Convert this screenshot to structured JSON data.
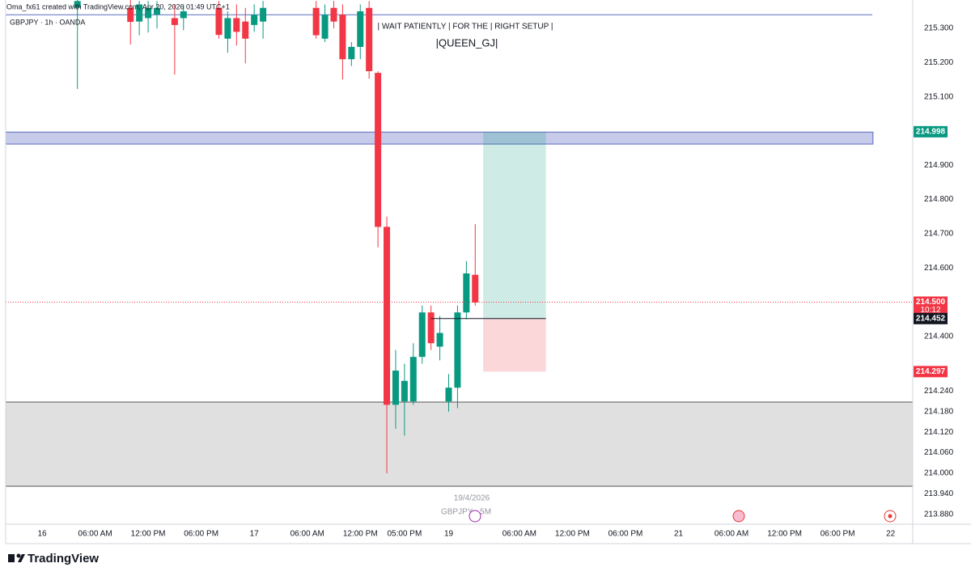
{
  "chart_data": {
    "type": "candlestick",
    "credit": "Oma_fx61 created with TradingView.com, Apr 20, 2026 01:49 UTC+1",
    "symbol": "GBPJPY · 1h · OANDA",
    "annotations": [
      "| WAIT PATIENTLY  | FOR THE   | RIGHT SETUP  |",
      "|QUEEN_GJ|"
    ],
    "date_label": "19/4/2026",
    "interval_label": "GBPJPY · 5M",
    "brand": "TradingView",
    "up_color": "#089981",
    "down_color": "#f23645",
    "x": [
      4,
      10,
      11,
      12,
      13,
      15,
      16,
      20,
      21,
      22,
      23,
      24,
      25,
      31,
      32,
      33,
      34,
      35,
      36,
      37,
      38,
      39,
      40,
      41,
      42,
      43,
      44,
      45,
      46,
      47,
      48,
      49
    ],
    "open": [
      215.36,
      215.36,
      215.32,
      215.33,
      215.34,
      215.33,
      215.33,
      215.36,
      215.27,
      215.33,
      215.32,
      215.31,
      215.32,
      215.36,
      215.27,
      215.36,
      215.34,
      215.21,
      215.246,
      215.36,
      215.17,
      214.72,
      214.2,
      214.21,
      214.21,
      214.34,
      214.47,
      214.37,
      214.21,
      214.25,
      214.47,
      214.58
    ],
    "high": [
      215.4,
      215.39,
      215.38,
      215.38,
      215.38,
      215.37,
      215.37,
      215.38,
      215.35,
      215.37,
      215.36,
      215.37,
      215.38,
      215.38,
      215.37,
      215.38,
      215.37,
      215.26,
      215.37,
      215.38,
      215.175,
      214.75,
      214.36,
      214.32,
      214.38,
      214.49,
      214.49,
      214.46,
      214.29,
      214.49,
      214.62,
      214.728
    ],
    "low": [
      215.123,
      215.253,
      215.28,
      215.288,
      215.3,
      215.165,
      215.295,
      215.27,
      215.229,
      215.25,
      215.198,
      215.29,
      215.27,
      215.27,
      215.26,
      215.3,
      215.151,
      215.19,
      215.21,
      215.153,
      214.66,
      214.0,
      214.13,
      214.11,
      214.2,
      214.32,
      214.36,
      214.33,
      214.18,
      214.19,
      214.45,
      214.49
    ],
    "close": [
      215.38,
      215.319,
      215.37,
      215.36,
      215.36,
      215.31,
      215.35,
      215.281,
      215.33,
      215.29,
      215.27,
      215.34,
      215.36,
      215.28,
      215.34,
      215.32,
      215.21,
      215.246,
      215.35,
      215.175,
      214.72,
      214.2,
      214.3,
      214.27,
      214.34,
      214.47,
      214.38,
      214.41,
      214.25,
      214.47,
      214.584,
      214.499
    ],
    "xlim": [
      -4.12,
      98.5
    ],
    "ylim": [
      213.851,
      215.383
    ],
    "xticks": [
      {
        "value": 0,
        "label": "16"
      },
      {
        "value": 6,
        "label": "06:00 AM"
      },
      {
        "value": 12,
        "label": "12:00 PM"
      },
      {
        "value": 18,
        "label": "06:00 PM"
      },
      {
        "value": 24,
        "label": "17"
      },
      {
        "value": 30,
        "label": "06:00 AM"
      },
      {
        "value": 36,
        "label": "12:00 PM"
      },
      {
        "value": 41,
        "label": "05:00 PM"
      },
      {
        "value": 46,
        "label": "19"
      },
      {
        "value": 54,
        "label": "06:00 AM"
      },
      {
        "value": 60,
        "label": "12:00 PM"
      },
      {
        "value": 66,
        "label": "06:00 PM"
      },
      {
        "value": 72,
        "label": "21"
      },
      {
        "value": 78,
        "label": "06:00 AM"
      },
      {
        "value": 84,
        "label": "12:00 PM"
      },
      {
        "value": 90,
        "label": "06:00 PM"
      },
      {
        "value": 96,
        "label": "22"
      }
    ],
    "yticks": [
      {
        "value": 215.3,
        "label": "215.300"
      },
      {
        "value": 215.2,
        "label": "215.200"
      },
      {
        "value": 215.1,
        "label": "215.100"
      },
      {
        "value": 214.9,
        "label": "214.900"
      },
      {
        "value": 214.8,
        "label": "214.800"
      },
      {
        "value": 214.7,
        "label": "214.700"
      },
      {
        "value": 214.6,
        "label": "214.600"
      },
      {
        "value": 214.4,
        "label": "214.400"
      },
      {
        "value": 214.24,
        "label": "214.240"
      },
      {
        "value": 214.18,
        "label": "214.180"
      },
      {
        "value": 214.12,
        "label": "214.120"
      },
      {
        "value": 214.06,
        "label": "214.060"
      },
      {
        "value": 214.0,
        "label": "214.000"
      },
      {
        "value": 213.94,
        "label": "213.940"
      },
      {
        "value": 213.88,
        "label": "213.880"
      }
    ],
    "grid": false,
    "zones": [
      {
        "top": 214.997,
        "bottom": 214.962,
        "x_end": 94,
        "color": "#c5cbe9",
        "border": "#5c6bc0"
      },
      {
        "top": 214.208,
        "bottom": 213.962,
        "x_end": 98.5,
        "color": "#e0e0e0",
        "border": "#555555"
      }
    ],
    "top_line": 215.34,
    "position": {
      "entry": 214.452,
      "target": 214.998,
      "stop": 214.297,
      "x_start": 49.9,
      "x_end": 57
    },
    "last_price_line": 214.5,
    "price_labels": [
      {
        "value": 214.998,
        "color": "#089981"
      },
      {
        "value": {
          "value": 214.5,
          "label": "214.500"
        },
        "sub": "10:12",
        "color": "#f23645"
      },
      {
        "value": 214.452,
        "color": "#131722"
      },
      {
        "value": 214.297,
        "color": "#f23645"
      }
    ]
  }
}
